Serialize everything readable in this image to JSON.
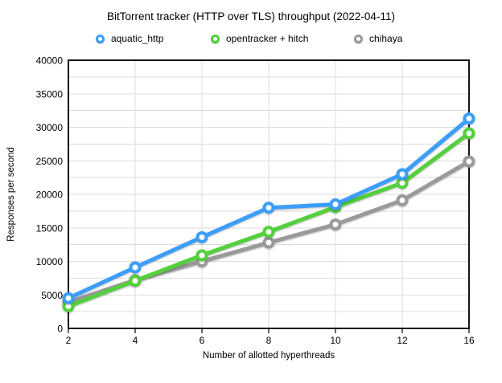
{
  "title": "BitTorrent tracker (HTTP over TLS) throughput (2022-04-11)",
  "colors": {
    "background": "#ffffff",
    "gridline": "#dcdcdc",
    "axis_border": "#161616",
    "text": "#000000"
  },
  "chart_data": {
    "type": "line",
    "title": "BitTorrent tracker (HTTP over TLS) throughput (2022-04-11)",
    "xlabel": "Number of allotted hyperthreads",
    "ylabel": "Responses per second",
    "categories": [
      2,
      4,
      6,
      8,
      10,
      12,
      16
    ],
    "ylim": [
      0,
      40000
    ],
    "yticks": [
      0,
      5000,
      10000,
      15000,
      20000,
      25000,
      30000,
      35000,
      40000
    ],
    "y_minor_step": 2500,
    "grid": true,
    "legend_position": "top",
    "marker_style": "open-circle",
    "series": [
      {
        "name": "aquatic_http",
        "color": "#3b9efc",
        "values": [
          4500,
          9100,
          13600,
          18000,
          18500,
          23000,
          31300
        ]
      },
      {
        "name": "opentracker + hitch",
        "color": "#53d03c",
        "values": [
          3300,
          7100,
          10900,
          14400,
          18100,
          21700,
          29100
        ]
      },
      {
        "name": "chihaya",
        "color": "#9a9a9a",
        "values": [
          3900,
          7200,
          10000,
          12800,
          15500,
          19100,
          24900
        ]
      }
    ]
  }
}
